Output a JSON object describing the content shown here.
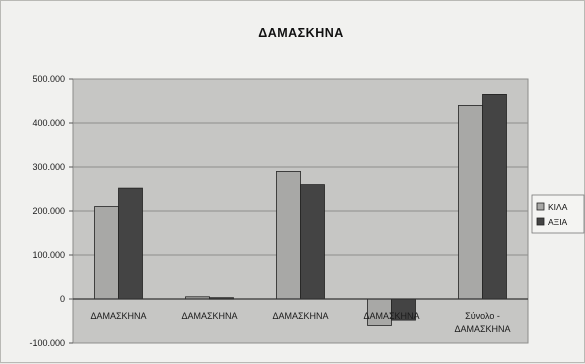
{
  "chart_data": {
    "type": "bar",
    "title": "ΔΑΜΑΣΚΗΝΑ",
    "xlabel": "",
    "ylabel": "",
    "categories": [
      "ΔΑΜΑΣΚΗΝΑ",
      "ΔΑΜΑΣΚΗΝΑ",
      "ΔΑΜΑΣΚΗΝΑ",
      "ΔΑΜΑΣΚΗΝΑ",
      "Σύνολο - ΔΑΜΑΣΚΗΝΑ"
    ],
    "series": [
      {
        "name": "ΚΙΛΑ",
        "color": "#a8a8a6",
        "values": [
          210000,
          5000,
          290000,
          -60000,
          440000
        ]
      },
      {
        "name": "ΑΞΙΑ",
        "color": "#444444",
        "values": [
          252000,
          3000,
          260000,
          -48000,
          465000
        ]
      }
    ],
    "ylim": [
      -100000,
      500000
    ],
    "yticks": [
      500000,
      400000,
      300000,
      200000,
      100000,
      0,
      -100000
    ],
    "ytick_labels": [
      "500.000",
      "400.000",
      "300.000",
      "200.000",
      "100.000",
      "0",
      "-100.000"
    ],
    "grid": true,
    "legend_position": "right",
    "plot_background": "#c6c6c4"
  }
}
